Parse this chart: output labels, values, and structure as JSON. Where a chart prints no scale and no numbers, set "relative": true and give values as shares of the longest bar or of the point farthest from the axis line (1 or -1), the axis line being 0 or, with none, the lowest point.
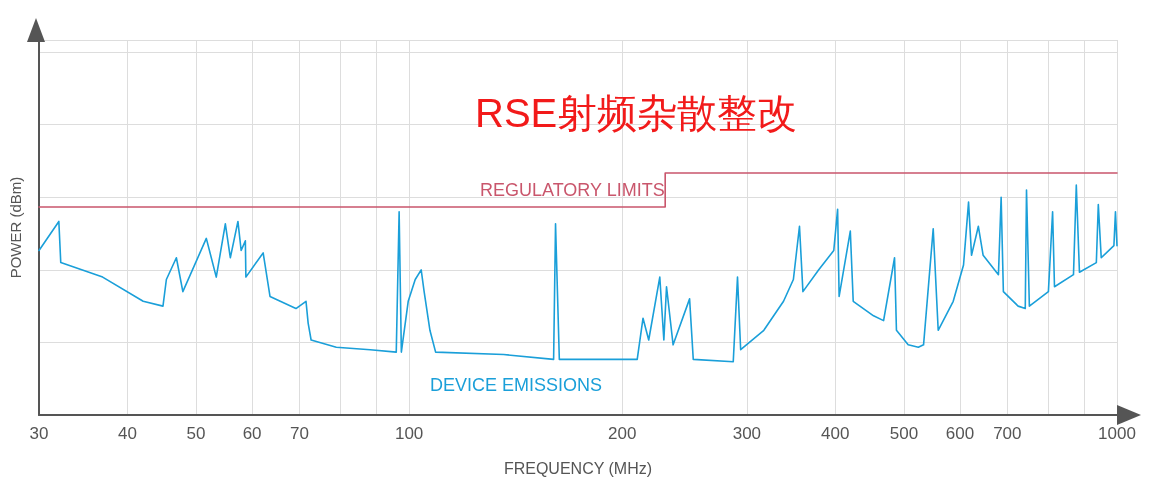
{
  "chart_data": {
    "type": "line",
    "title": "RSE射频杂散整改",
    "xlabel": "FREQUENCY (MHz)",
    "ylabel": "POWER (dBm)",
    "relative": true,
    "log": "x",
    "grid": true,
    "legend": false,
    "marker": "none",
    "line_style": "solid",
    "xlim": [
      30,
      1000
    ],
    "xticks": [
      30,
      40,
      50,
      60,
      70,
      {
        "value": 80,
        "label": null
      },
      {
        "value": 90,
        "label": null
      },
      100,
      200,
      300,
      400,
      500,
      600,
      700,
      {
        "value": 800,
        "label": null
      },
      {
        "value": 900,
        "label": null
      },
      1000
    ],
    "series": [
      {
        "name": "REGULATORY LIMITS",
        "type": "step",
        "color": "#c9566c",
        "x": [
          30,
          230,
          1000
        ],
        "values": [
          0.86,
          1,
          1
        ]
      },
      {
        "name": "DEVICE EMISSIONS",
        "color": "#1a9fd9",
        "x": [
          30,
          32.0,
          32.2,
          36.9,
          42.1,
          44.9,
          45.4,
          46.9,
          47.9,
          51.7,
          53.4,
          55.0,
          55.9,
          57.3,
          57.9,
          58.7,
          58.8,
          62.2,
          63.6,
          69.2,
          71.5,
          72.0,
          72.7,
          78.9,
          88.1,
          95.9,
          96.8,
          97.5,
          99.7,
          102,
          104,
          105,
          107,
          109,
          136,
          160,
          161,
          163,
          201,
          210,
          214,
          218,
          226,
          229,
          231,
          236,
          249,
          252,
          287,
          291,
          294,
          317,
          338,
          349,
          356,
          360,
          379,
          398,
          403,
          405,
          420,
          424,
          453,
          468,
          485,
          488,
          507,
          524,
          533,
          550,
          559,
          587,
          607,
          617,
          623,
          637,
          647,
          680,
          686,
          691,
          725,
          742,
          745,
          752,
          800,
          811,
          816,
          868,
          876,
          885,
          935,
          941,
          950,
          990,
          995,
          1000
        ],
        "values": [
          0.68,
          0.8,
          0.63,
          0.57,
          0.47,
          0.45,
          0.56,
          0.65,
          0.51,
          0.73,
          0.57,
          0.79,
          0.65,
          0.8,
          0.68,
          0.72,
          0.57,
          0.67,
          0.49,
          0.44,
          0.47,
          0.38,
          0.31,
          0.28,
          0.27,
          0.26,
          0.84,
          0.26,
          0.47,
          0.56,
          0.6,
          0.51,
          0.35,
          0.26,
          0.25,
          0.23,
          0.79,
          0.23,
          0.23,
          0.23,
          0.4,
          0.31,
          0.57,
          0.31,
          0.53,
          0.29,
          0.48,
          0.23,
          0.22,
          0.57,
          0.27,
          0.35,
          0.47,
          0.56,
          0.78,
          0.51,
          0.6,
          0.68,
          0.85,
          0.49,
          0.76,
          0.47,
          0.41,
          0.39,
          0.65,
          0.35,
          0.29,
          0.28,
          0.29,
          0.77,
          0.35,
          0.47,
          0.62,
          0.88,
          0.66,
          0.78,
          0.66,
          0.58,
          0.9,
          0.51,
          0.45,
          0.44,
          0.93,
          0.45,
          0.51,
          0.84,
          0.53,
          0.58,
          0.95,
          0.59,
          0.63,
          0.87,
          0.65,
          0.7,
          0.84,
          0.7
        ]
      }
    ]
  }
}
